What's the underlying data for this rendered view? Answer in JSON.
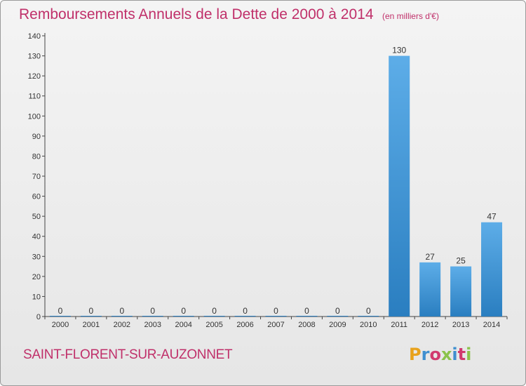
{
  "title": "Remboursements Annuels de la Dette de 2000 à 2014",
  "subtitle": "(en milliers d'€)",
  "commune": "SAINT-FLORENT-SUR-AUZONNET",
  "logo": {
    "text": "Proxiti",
    "colors": [
      "#e8a21c",
      "#3f8fd0",
      "#d13a6e",
      "#8bc34a",
      "#3f8fd0",
      "#d13a6e",
      "#8bc34a"
    ]
  },
  "colors": {
    "bar_light": "#5dade8",
    "bar_dark": "#2a7ec0",
    "accent": "#c0306a"
  },
  "chart_data": {
    "type": "bar",
    "categories": [
      "2000",
      "2001",
      "2002",
      "2003",
      "2004",
      "2005",
      "2006",
      "2007",
      "2008",
      "2009",
      "2010",
      "2011",
      "2012",
      "2013",
      "2014"
    ],
    "values": [
      0,
      0,
      0,
      0,
      0,
      0,
      0,
      0,
      0,
      0,
      0,
      130,
      27,
      25,
      47
    ],
    "ylim": [
      0,
      140
    ],
    "yticks": [
      0,
      10,
      20,
      30,
      40,
      50,
      60,
      70,
      80,
      90,
      100,
      110,
      120,
      130,
      140
    ],
    "grid": false,
    "xlabel": "",
    "ylabel": ""
  }
}
